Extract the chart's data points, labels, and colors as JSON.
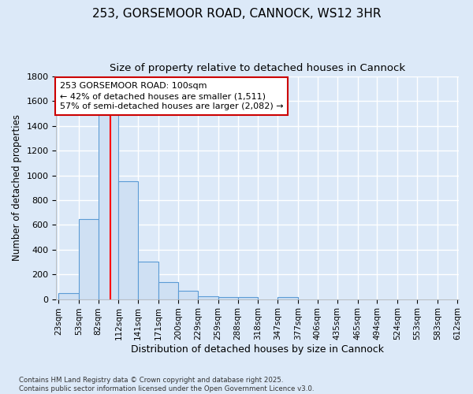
{
  "title_line1": "253, GORSEMOOR ROAD, CANNOCK, WS12 3HR",
  "title_line2": "Size of property relative to detached houses in Cannock",
  "xlabel": "Distribution of detached houses by size in Cannock",
  "ylabel": "Number of detached properties",
  "bin_edges": [
    23,
    53,
    82,
    112,
    141,
    171,
    200,
    229,
    259,
    288,
    318,
    347,
    377,
    406,
    435,
    465,
    494,
    524,
    553,
    583,
    612
  ],
  "bar_heights": [
    50,
    650,
    1500,
    950,
    300,
    135,
    65,
    25,
    15,
    15,
    0,
    15,
    0,
    0,
    0,
    0,
    0,
    0,
    0,
    0
  ],
  "bar_color": "#cfe0f3",
  "bar_edge_color": "#5b9bd5",
  "property_size": 100,
  "red_line_color": "#ff0000",
  "annotation_text": "253 GORSEMOOR ROAD: 100sqm\n← 42% of detached houses are smaller (1,511)\n57% of semi-detached houses are larger (2,082) →",
  "annotation_box_color": "#ffffff",
  "annotation_box_edge": "#cc0000",
  "ylim": [
    0,
    1800
  ],
  "yticks": [
    0,
    200,
    400,
    600,
    800,
    1000,
    1200,
    1400,
    1600,
    1800
  ],
  "background_color": "#dce9f8",
  "grid_color": "#ffffff",
  "footer_line1": "Contains HM Land Registry data © Crown copyright and database right 2025.",
  "footer_line2": "Contains public sector information licensed under the Open Government Licence v3.0."
}
